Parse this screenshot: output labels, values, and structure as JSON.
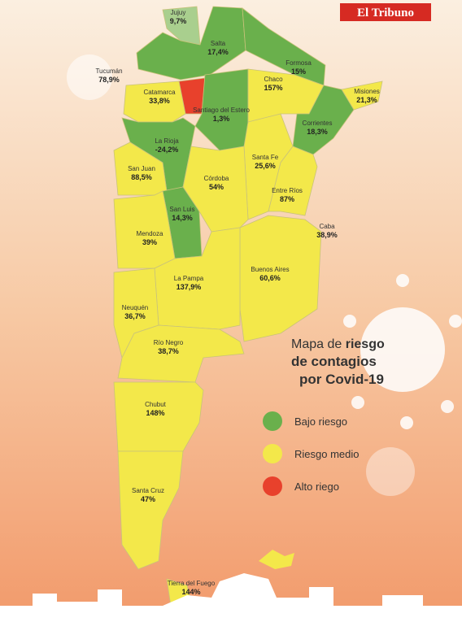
{
  "brand": "El Tribuno",
  "title": {
    "line1_normal": "Mapa de",
    "line1_bold": "riesgo",
    "line2": "de contagios",
    "line3": "por Covid-19"
  },
  "legend": [
    {
      "label": "Bajo riesgo",
      "color": "#6ab04c"
    },
    {
      "label": "Riesgo medio",
      "color": "#f3e84a"
    },
    {
      "label": "Alto riego",
      "color": "#e8412c"
    }
  ],
  "provinces": [
    {
      "name": "Jujuy",
      "value": "9,7%",
      "color": "#a9cf8e"
    },
    {
      "name": "Salta",
      "value": "17,4%",
      "color": "#6ab04c"
    },
    {
      "name": "Formosa",
      "value": "15%",
      "color": "#6ab04c"
    },
    {
      "name": "Tucumán",
      "value": "78,9%",
      "color": "#e8412c"
    },
    {
      "name": "Catamarca",
      "value": "33,8%",
      "color": "#f3e84a"
    },
    {
      "name": "Santiago del Estero",
      "value": "1,3%",
      "color": "#6ab04c"
    },
    {
      "name": "Chaco",
      "value": "157%",
      "color": "#f3e84a"
    },
    {
      "name": "Misiones",
      "value": "21,3%",
      "color": "#f3e84a"
    },
    {
      "name": "Corrientes",
      "value": "18,3%",
      "color": "#6ab04c"
    },
    {
      "name": "La Rioja",
      "value": "-24,2%",
      "color": "#6ab04c"
    },
    {
      "name": "Santa Fe",
      "value": "25,6%",
      "color": "#f3e84a"
    },
    {
      "name": "San Juan",
      "value": "88,5%",
      "color": "#f3e84a"
    },
    {
      "name": "Córdoba",
      "value": "54%",
      "color": "#f3e84a"
    },
    {
      "name": "Entre Ríos",
      "value": "87%",
      "color": "#f3e84a"
    },
    {
      "name": "San Luis",
      "value": "14,3%",
      "color": "#6ab04c"
    },
    {
      "name": "Mendoza",
      "value": "39%",
      "color": "#f3e84a"
    },
    {
      "name": "Caba",
      "value": "38,9%",
      "color": "#f3e84a"
    },
    {
      "name": "Buenos Aires",
      "value": "60,6%",
      "color": "#f3e84a"
    },
    {
      "name": "La Pampa",
      "value": "137,9%",
      "color": "#f3e84a"
    },
    {
      "name": "Neuquén",
      "value": "36,7%",
      "color": "#f3e84a"
    },
    {
      "name": "Río Negro",
      "value": "38,7%",
      "color": "#f3e84a"
    },
    {
      "name": "Chubut",
      "value": "148%",
      "color": "#f3e84a"
    },
    {
      "name": "Santa Cruz",
      "value": "47%",
      "color": "#f3e84a"
    },
    {
      "name": "Tierra del Fuego",
      "value": "144%",
      "color": "#f3e84a"
    }
  ]
}
